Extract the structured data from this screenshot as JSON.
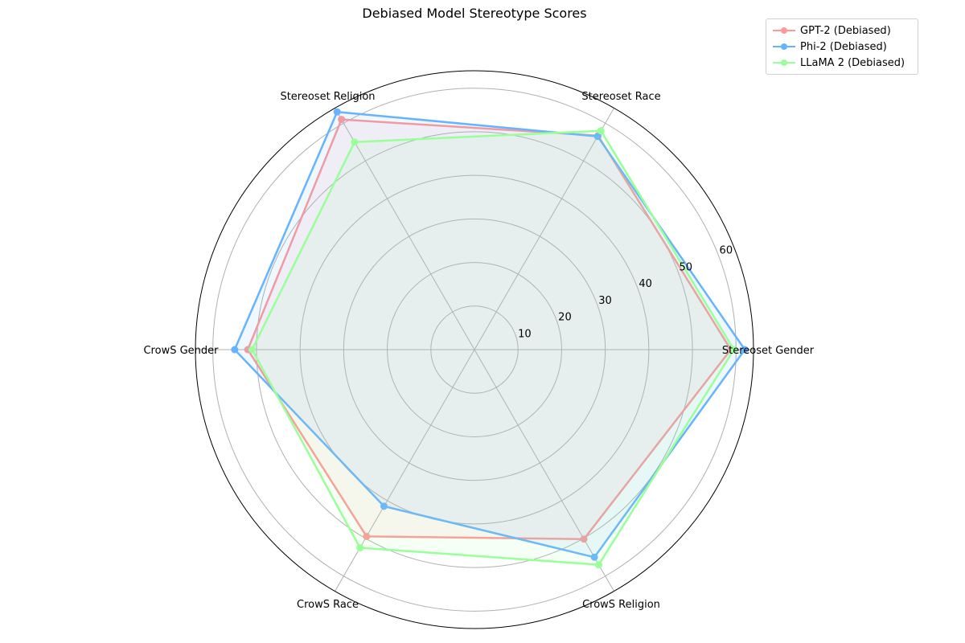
{
  "chart_data": {
    "type": "radar",
    "title": "Debiased Model Stereotype Scores",
    "categories": [
      "Stereoset Gender",
      "Stereoset Race",
      "Stereoset Religion",
      "CrowS Gender",
      "CrowS Race",
      "CrowS Religion"
    ],
    "r_ticks": [
      10,
      20,
      30,
      40,
      50,
      60
    ],
    "r_max": 64,
    "series": [
      {
        "name": "GPT-2 (Debiased)",
        "color": "#ff9999",
        "values": [
          58.8,
          56.7,
          61.0,
          52.0,
          49.5,
          50.2
        ]
      },
      {
        "name": "Phi-2 (Debiased)",
        "color": "#66b3ff",
        "values": [
          62.0,
          56.5,
          63.0,
          55.0,
          41.5,
          55.0
        ]
      },
      {
        "name": "LLaMA 2 (Debiased)",
        "color": "#99ff99",
        "values": [
          59.5,
          58.0,
          55.0,
          51.0,
          52.5,
          57.0
        ]
      }
    ],
    "grid": true,
    "legend_position": "top-right"
  }
}
